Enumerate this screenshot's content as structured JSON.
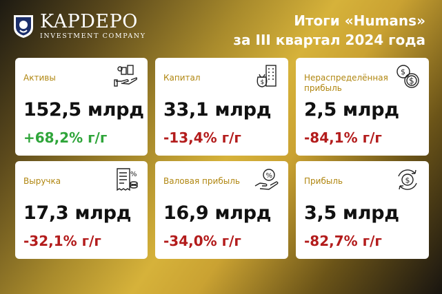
{
  "brand": {
    "name": "KAPDEPO",
    "subtitle": "INVESTMENT COMPANY"
  },
  "headline": {
    "line1": "Итоги «Humans»",
    "line2": "за III квартал 2024 года"
  },
  "cards": [
    {
      "label": "Активы",
      "value": "152,5 млрд",
      "change": "+68,2% г/г",
      "trend": "positive",
      "icon": "assets-hand-icon"
    },
    {
      "label": "Капитал",
      "value": "33,1 млрд",
      "change": "-13,4% г/г",
      "trend": "negative",
      "icon": "money-bag-building-icon"
    },
    {
      "label": "Нераспределённая прибыль",
      "value": "2,5 млрд",
      "change": "-84,1% г/г",
      "trend": "negative",
      "icon": "coins-stack-icon"
    },
    {
      "label": "Выручка",
      "value": "17,3 млрд",
      "change": "-32,1% г/г",
      "trend": "negative",
      "icon": "receipt-percent-icon"
    },
    {
      "label": "Валовая прибыль",
      "value": "16,9 млрд",
      "change": "-34,0% г/г",
      "trend": "negative",
      "icon": "hand-coin-percent-icon"
    },
    {
      "label": "Прибыль",
      "value": "3,5 млрд",
      "change": "-82,7% г/г",
      "trend": "negative",
      "icon": "dollar-cycle-icon"
    }
  ],
  "colors": {
    "label": "#b0860f",
    "positive": "#2fa53a",
    "negative": "#b31c1c"
  }
}
